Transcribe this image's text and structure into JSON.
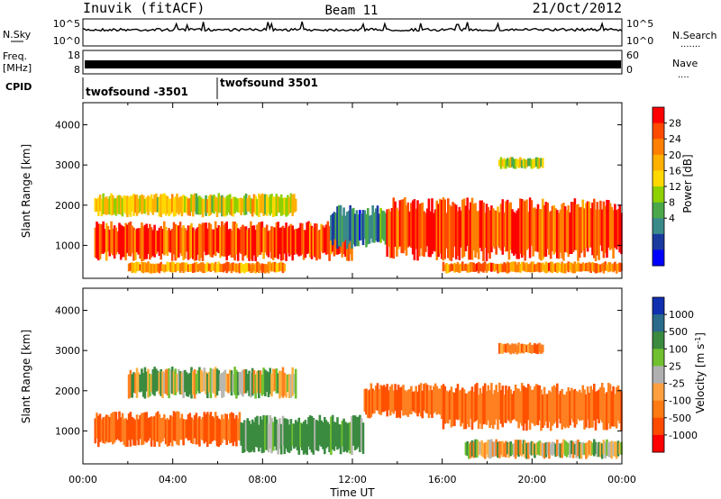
{
  "header": {
    "station": "Inuvik (fitACF)",
    "beam": "Beam 11",
    "date": "21/Oct/2012"
  },
  "strip_panels": {
    "nsky": {
      "left_label": "N.Sky",
      "right_label": "N.Search",
      "right_dots": ".......",
      "left_ticks": [
        "10^5",
        "10^0"
      ],
      "right_ticks": [
        "10^5",
        "10^0"
      ]
    },
    "freq": {
      "left_label_top": "Freq.",
      "left_label_bottom": "[MHz]",
      "right_label": "Nave",
      "right_dots": "....",
      "left_ticks": [
        "18",
        "8"
      ],
      "right_ticks": [
        "60",
        "0"
      ]
    },
    "cpid": {
      "label": "CPID",
      "segments": [
        {
          "text": "twofsound -3501",
          "start_hour": 0
        },
        {
          "text": "twofsound 3501",
          "start_hour": 6
        }
      ]
    }
  },
  "colorbars": {
    "power": {
      "label": "Power [dB]",
      "ticks": [
        "28",
        "24",
        "20",
        "16",
        "12",
        "8",
        "4"
      ],
      "colors": [
        "#ff0000",
        "#ff4a00",
        "#ff8000",
        "#ffb000",
        "#ffd800",
        "#8fd000",
        "#4aa84a",
        "#3a8a8a",
        "#1a3aa0",
        "#0000ff"
      ]
    },
    "velocity": {
      "label_main": "Velocity  [m s",
      "label_sup": "-1",
      "label_end": "]",
      "ticks": [
        "1000",
        "500",
        "100",
        "25",
        "-25",
        "-100",
        "-500",
        "-1000"
      ],
      "colors": [
        "#1030b0",
        "#2a6a8a",
        "#3a8a40",
        "#70c030",
        "#b0b0b0",
        "#ffa040",
        "#ff7a10",
        "#ff4a00",
        "#ff0000"
      ]
    }
  },
  "axes": {
    "ylabel": "Slant Range [km]",
    "xlabel": "Time UT",
    "x_ticks": [
      "00:00",
      "04:00",
      "08:00",
      "12:00",
      "16:00",
      "20:00",
      "00:00"
    ],
    "y_ticks": [
      "1000",
      "2000",
      "3000",
      "4000"
    ]
  },
  "chart_data": [
    {
      "type": "heatmap",
      "title": "Power [dB]",
      "xlabel": "Time UT",
      "ylabel": "Slant Range [km]",
      "xlim_hours": [
        0,
        24
      ],
      "ylim_km": [
        180,
        4550
      ],
      "colorbar_ticks": [
        4,
        8,
        12,
        16,
        20,
        24,
        28
      ],
      "echo_regions": [
        {
          "t_start": 0.5,
          "t_end": 12.0,
          "range_min": 600,
          "range_max": 1600,
          "power_db": 27
        },
        {
          "t_start": 0.5,
          "t_end": 9.5,
          "range_min": 1700,
          "range_max": 2300,
          "power_db": 18
        },
        {
          "t_start": 2.0,
          "t_end": 9.0,
          "range_min": 300,
          "range_max": 600,
          "power_db": 22
        },
        {
          "t_start": 11.0,
          "t_end": 13.5,
          "range_min": 900,
          "range_max": 2000,
          "power_db": 9
        },
        {
          "t_start": 13.5,
          "t_end": 24.0,
          "range_min": 600,
          "range_max": 2200,
          "power_db": 27
        },
        {
          "t_start": 16.0,
          "t_end": 24.0,
          "range_min": 300,
          "range_max": 600,
          "power_db": 24
        },
        {
          "t_start": 18.5,
          "t_end": 20.5,
          "range_min": 2900,
          "range_max": 3200,
          "power_db": 16
        }
      ]
    },
    {
      "type": "heatmap",
      "title": "Velocity [m s-1]",
      "xlabel": "Time UT",
      "ylabel": "Slant Range [km]",
      "xlim_hours": [
        0,
        24
      ],
      "ylim_km": [
        180,
        4550
      ],
      "colorbar_ticks": [
        -1000,
        -500,
        -100,
        -25,
        25,
        100,
        500,
        1000
      ],
      "echo_regions": [
        {
          "t_start": 0.5,
          "t_end": 7.0,
          "range_min": 600,
          "range_max": 1500,
          "velocity": -300
        },
        {
          "t_start": 7.0,
          "t_end": 12.5,
          "range_min": 400,
          "range_max": 1400,
          "velocity": 150
        },
        {
          "t_start": 2.0,
          "t_end": 9.5,
          "range_min": 1800,
          "range_max": 2600,
          "velocity": 0
        },
        {
          "t_start": 12.5,
          "t_end": 16.0,
          "range_min": 1300,
          "range_max": 2200,
          "velocity": -300
        },
        {
          "t_start": 16.0,
          "t_end": 24.0,
          "range_min": 1000,
          "range_max": 2200,
          "velocity": -250
        },
        {
          "t_start": 17.0,
          "t_end": 24.0,
          "range_min": 300,
          "range_max": 800,
          "velocity": 0
        },
        {
          "t_start": 18.5,
          "t_end": 20.5,
          "range_min": 2900,
          "range_max": 3200,
          "velocity": -200
        }
      ]
    }
  ]
}
